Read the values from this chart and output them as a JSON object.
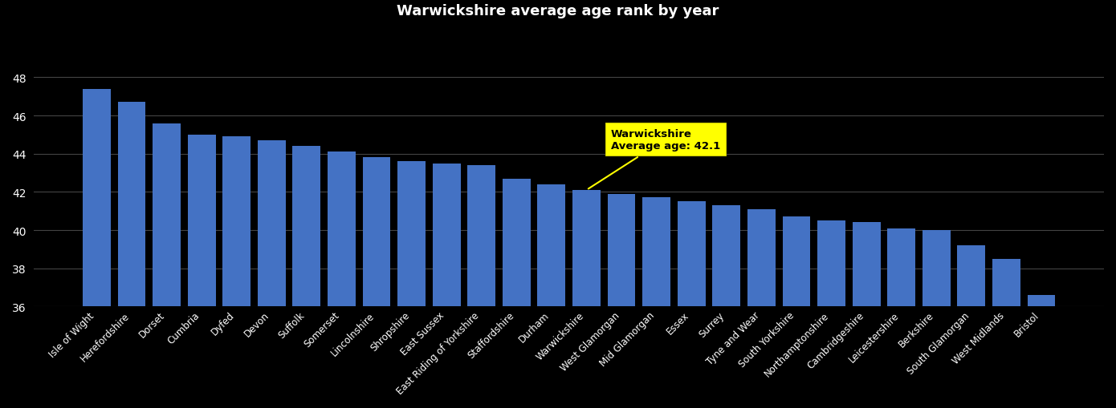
{
  "categories": [
    "Isle of Wight",
    "Herefordshire",
    "Dorset",
    "Cumbria",
    "Dyfed",
    "Devon",
    "Suffolk",
    "Somerset",
    "Lincolnshire",
    "Shropshire",
    "East Sussex",
    "East Riding of Yorkshire",
    "Staffordshire",
    "Durham",
    "Warwickshire",
    "West Glamorgan",
    "Mid Glamorgan",
    "Essex",
    "Surrey",
    "Tyne and Wear",
    "South Yorkshire",
    "Northamptonshire",
    "Cambridgeshire",
    "Leicestershire",
    "Berkshire",
    "South Glamorgan",
    "West Midlands",
    "Bristol"
  ],
  "values": [
    47.4,
    46.7,
    45.6,
    45.0,
    44.9,
    44.7,
    44.4,
    44.1,
    43.8,
    43.6,
    43.5,
    43.4,
    42.7,
    42.4,
    42.1,
    41.9,
    41.7,
    41.5,
    41.3,
    41.1,
    40.7,
    40.5,
    40.4,
    40.1,
    40.0,
    39.2,
    38.5,
    36.6
  ],
  "highlight_index": 14,
  "highlight_label": "Warwickshire",
  "highlight_value": "42.1",
  "bar_color": "#4472C4",
  "annotation_box_color": "#FFFF00",
  "annotation_text_color": "#000000",
  "ylim_min": 36,
  "ylim_max": 49,
  "yticks": [
    36,
    38,
    40,
    42,
    44,
    46,
    48
  ],
  "background_color": "#000000",
  "grid_color": "#444444",
  "tick_label_color": "#FFFFFF",
  "title": "Warwickshire average age rank by year",
  "title_color": "#FFFFFF",
  "title_fontsize": 13
}
